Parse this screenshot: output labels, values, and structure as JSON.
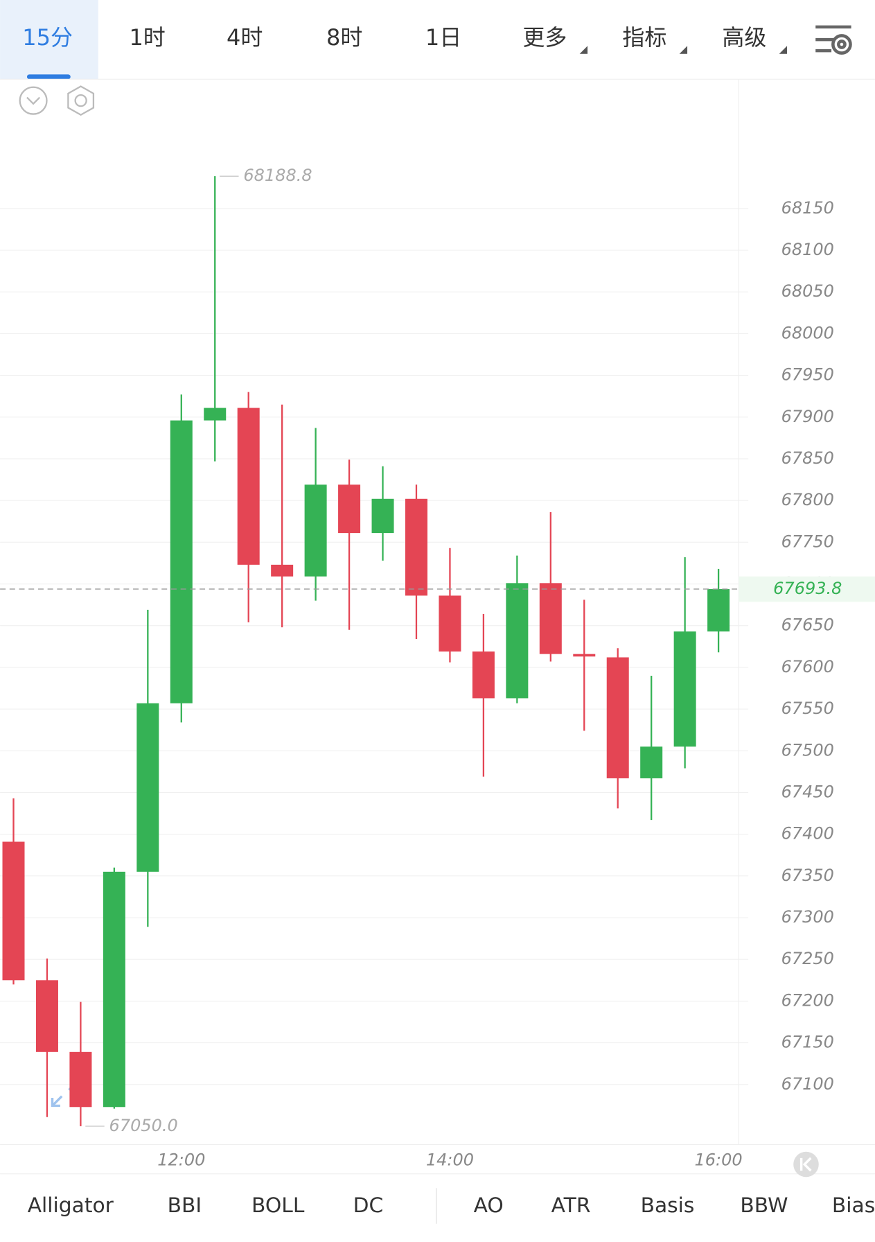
{
  "tabs": [
    "15分",
    "1时",
    "4时",
    "8时",
    "1日",
    "更多",
    "指标",
    "高级"
  ],
  "indicators": [
    "Alligator",
    "BBI",
    "BOLL",
    "DC",
    "AO",
    "ATR",
    "Basis",
    "BBW",
    "Bias"
  ],
  "chart_data": {
    "type": "candlestick",
    "categories": [
      null,
      null,
      null,
      null,
      null,
      "12:00",
      null,
      null,
      null,
      null,
      null,
      null,
      null,
      "14:00",
      null,
      null,
      null,
      null,
      null,
      null,
      null,
      "16:00"
    ],
    "open": [
      67391,
      67225,
      67139,
      67073,
      67355,
      67557,
      67896,
      67911,
      67723,
      67709,
      67819,
      67761,
      67802,
      67686,
      67619,
      67563,
      67701,
      67616,
      67612,
      67467,
      67505,
      67643
    ],
    "high": [
      67443,
      67251,
      67199,
      67360,
      67669,
      67927,
      68188.8,
      67930,
      67915,
      67887,
      67849,
      67841,
      67819,
      67743,
      67664,
      67734,
      67786,
      67681,
      67623,
      67590,
      67732,
      67718
    ],
    "low": [
      67220,
      67061,
      67050,
      67071,
      67289,
      67534,
      67847,
      67654,
      67648,
      67680,
      67645,
      67728,
      67634,
      67606,
      67469,
      67557,
      67607,
      67524,
      67431,
      67417,
      67479,
      67618
    ],
    "close": [
      67225,
      67139,
      67073,
      67355,
      67557,
      67896,
      67911,
      67723,
      67709,
      67819,
      67761,
      67802,
      67686,
      67619,
      67563,
      67701,
      67616,
      67613,
      67467,
      67505,
      67643,
      67693.8
    ],
    "up_color": "#35b255",
    "down_color": "#e44554",
    "ylim": [
      67028,
      68305
    ],
    "yticks": [
      67100,
      67150,
      67200,
      67250,
      67300,
      67350,
      67400,
      67450,
      67500,
      67550,
      67600,
      67650,
      67700,
      67750,
      67800,
      67850,
      67900,
      67950,
      68000,
      68050,
      68100,
      68150
    ],
    "grid": true,
    "annotations": [
      {
        "label": "68188.8",
        "value": 68188.8,
        "index": 6
      },
      {
        "label": "67050.0",
        "value": 67050,
        "index": 2
      }
    ],
    "last_price": {
      "value": 67693.8,
      "label": "67693.8"
    }
  }
}
